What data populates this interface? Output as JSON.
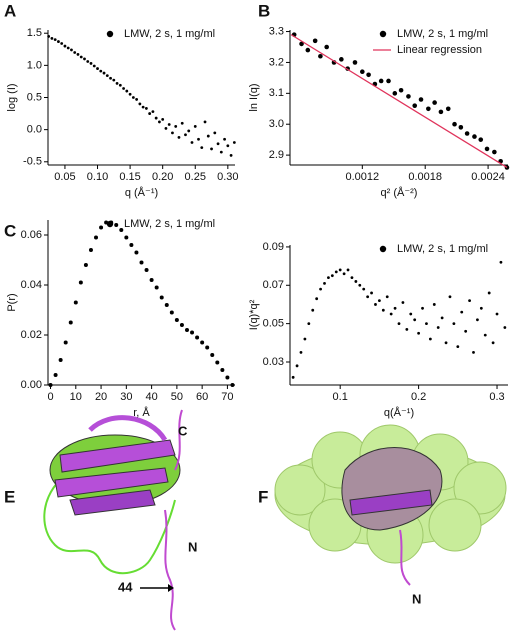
{
  "chart_data": [
    {
      "type": "scatter",
      "xlabel": "q (Å⁻¹)",
      "ylabel": "log (I)",
      "xlim": [
        0.024,
        0.311
      ],
      "ylim": [
        -0.55,
        1.55
      ],
      "xticks": [
        0.05,
        {
          "value": 0.1,
          "label": "0.10"
        },
        0.15,
        {
          "value": 0.2,
          "label": "0.20"
        },
        0.25,
        {
          "value": 0.3,
          "label": "0.30"
        }
      ],
      "yticks": [
        {
          "value": -0.5,
          "label": "-0.5"
        },
        {
          "value": 0,
          "label": "0.0"
        },
        0.5,
        {
          "value": 1,
          "label": "1.0"
        },
        1.5
      ],
      "series": [
        {
          "name": "LMW, 2 s, 1 mg/ml",
          "color": "#000000",
          "x": [
            0.025,
            0.03,
            0.035,
            0.04,
            0.045,
            0.05,
            0.055,
            0.06,
            0.065,
            0.07,
            0.075,
            0.08,
            0.085,
            0.09,
            0.095,
            0.1,
            0.105,
            0.11,
            0.115,
            0.12,
            0.125,
            0.13,
            0.135,
            0.14,
            0.145,
            0.15,
            0.155,
            0.16,
            0.165,
            0.17,
            0.175,
            0.18,
            0.185,
            0.19,
            0.195,
            0.2,
            0.205,
            0.21,
            0.215,
            0.22,
            0.225,
            0.23,
            0.235,
            0.24,
            0.245,
            0.25,
            0.255,
            0.26,
            0.265,
            0.27,
            0.275,
            0.28,
            0.285,
            0.29,
            0.295,
            0.3,
            0.305,
            0.31
          ],
          "values": [
            1.45,
            1.42,
            1.4,
            1.37,
            1.34,
            1.3,
            1.27,
            1.24,
            1.2,
            1.17,
            1.13,
            1.1,
            1.06,
            1.03,
            0.99,
            0.95,
            0.91,
            0.88,
            0.84,
            0.8,
            0.77,
            0.72,
            0.69,
            0.64,
            0.6,
            0.55,
            0.5,
            0.47,
            0.4,
            0.35,
            0.33,
            0.25,
            0.28,
            0.18,
            0.12,
            0.16,
            0.02,
            0.08,
            -0.05,
            0.05,
            -0.12,
            0.1,
            -0.08,
            -0.02,
            -0.2,
            0.05,
            -0.15,
            -0.28,
            0.12,
            -0.1,
            -0.3,
            -0.05,
            -0.22,
            -0.35,
            -0.15,
            -0.25,
            -0.4,
            -0.2
          ]
        }
      ]
    },
    {
      "type": "scatter",
      "xlabel": "q² (Å⁻²)",
      "ylabel": "ln I(q)",
      "xlim": [
        0.00051,
        0.00259
      ],
      "ylim": [
        2.868,
        3.305
      ],
      "xticks": [
        0.0012,
        0.0018,
        0.0024
      ],
      "yticks": [
        2.9,
        {
          "value": 3,
          "label": "3.0"
        },
        3.1,
        3.2,
        3.3
      ],
      "series": [
        {
          "name": "LMW, 2 s, 1 mg/ml",
          "color": "#000000",
          "x": [
            0.00055,
            0.00062,
            0.00068,
            0.00075,
            0.0008,
            0.00086,
            0.00093,
            0.001,
            0.00106,
            0.00113,
            0.0012,
            0.00126,
            0.00132,
            0.00138,
            0.00145,
            0.00151,
            0.00157,
            0.00164,
            0.0017,
            0.00176,
            0.00183,
            0.00189,
            0.00195,
            0.00202,
            0.00208,
            0.00214,
            0.0022,
            0.00227,
            0.00233,
            0.00239,
            0.00246,
            0.00252,
            0.00258
          ],
          "values": [
            3.29,
            3.26,
            3.24,
            3.27,
            3.22,
            3.25,
            3.2,
            3.21,
            3.18,
            3.2,
            3.17,
            3.16,
            3.13,
            3.14,
            3.14,
            3.1,
            3.11,
            3.09,
            3.06,
            3.08,
            3.05,
            3.07,
            3.04,
            3.05,
            3.0,
            2.99,
            2.97,
            2.96,
            2.95,
            2.92,
            2.91,
            2.88,
            2.86
          ]
        },
        {
          "name": "Linear regression",
          "color": "#e0345c",
          "type": "line",
          "x": [
            0.00052,
            0.00258
          ],
          "values": [
            3.29,
            2.86
          ]
        }
      ]
    },
    {
      "type": "scatter",
      "xlabel": "r, Å",
      "ylabel": "P(r)",
      "xlim": [
        -1,
        73
      ],
      "ylim": [
        0,
        0.066
      ],
      "xticks": [
        0,
        10,
        20,
        30,
        40,
        50,
        60,
        70
      ],
      "yticks": [
        {
          "value": 0,
          "label": "0.00"
        },
        0.02,
        0.04,
        0.06
      ],
      "series": [
        {
          "name": "LMW, 2 s, 1 mg/ml",
          "color": "#000000",
          "x": [
            0,
            2,
            4,
            6,
            8,
            10,
            12,
            14,
            16,
            18,
            20,
            22,
            24,
            26,
            28,
            30,
            32,
            34,
            36,
            38,
            40,
            42,
            44,
            46,
            48,
            50,
            52,
            54,
            56,
            58,
            60,
            62,
            64,
            66,
            68,
            70,
            72
          ],
          "values": [
            0,
            0.004,
            0.01,
            0.017,
            0.025,
            0.033,
            0.041,
            0.048,
            0.054,
            0.059,
            0.063,
            0.065,
            0.065,
            0.064,
            0.062,
            0.059,
            0.056,
            0.053,
            0.049,
            0.046,
            0.042,
            0.039,
            0.035,
            0.032,
            0.029,
            0.026,
            0.024,
            0.022,
            0.021,
            0.019,
            0.017,
            0.015,
            0.012,
            0.009,
            0.006,
            0.003,
            0
          ]
        }
      ]
    },
    {
      "type": "scatter",
      "xlabel": "q(Å⁻¹)",
      "ylabel": "I(q)*q²",
      "xlim": [
        0.036,
        0.314
      ],
      "ylim": [
        0.018,
        0.091
      ],
      "xticks": [
        0.1,
        0.2,
        0.3
      ],
      "yticks": [
        0.03,
        0.05,
        0.07,
        0.09
      ],
      "series": [
        {
          "name": "LMW, 2 s, 1 mg/ml",
          "color": "#000000",
          "x": [
            0.04,
            0.045,
            0.05,
            0.055,
            0.06,
            0.065,
            0.07,
            0.075,
            0.08,
            0.085,
            0.09,
            0.095,
            0.1,
            0.105,
            0.11,
            0.115,
            0.12,
            0.125,
            0.13,
            0.135,
            0.14,
            0.145,
            0.15,
            0.155,
            0.16,
            0.165,
            0.17,
            0.175,
            0.18,
            0.185,
            0.19,
            0.195,
            0.2,
            0.205,
            0.21,
            0.215,
            0.22,
            0.225,
            0.23,
            0.235,
            0.24,
            0.245,
            0.25,
            0.255,
            0.26,
            0.265,
            0.27,
            0.275,
            0.28,
            0.285,
            0.29,
            0.295,
            0.3,
            0.305,
            0.31
          ],
          "values": [
            0.022,
            0.028,
            0.035,
            0.042,
            0.05,
            0.057,
            0.063,
            0.068,
            0.071,
            0.074,
            0.075,
            0.077,
            0.078,
            0.076,
            0.078,
            0.074,
            0.072,
            0.07,
            0.068,
            0.064,
            0.066,
            0.06,
            0.062,
            0.057,
            0.064,
            0.055,
            0.058,
            0.05,
            0.061,
            0.047,
            0.055,
            0.052,
            0.045,
            0.058,
            0.05,
            0.042,
            0.06,
            0.048,
            0.053,
            0.04,
            0.064,
            0.05,
            0.038,
            0.056,
            0.046,
            0.062,
            0.035,
            0.052,
            0.058,
            0.044,
            0.066,
            0.04,
            0.055,
            0.082,
            0.048
          ]
        }
      ]
    }
  ],
  "panel_labels": [
    "A",
    "B",
    "C",
    "E",
    "F"
  ],
  "structure_labels": {
    "E": [
      "C",
      "N",
      "44"
    ],
    "F": [
      "N"
    ]
  }
}
